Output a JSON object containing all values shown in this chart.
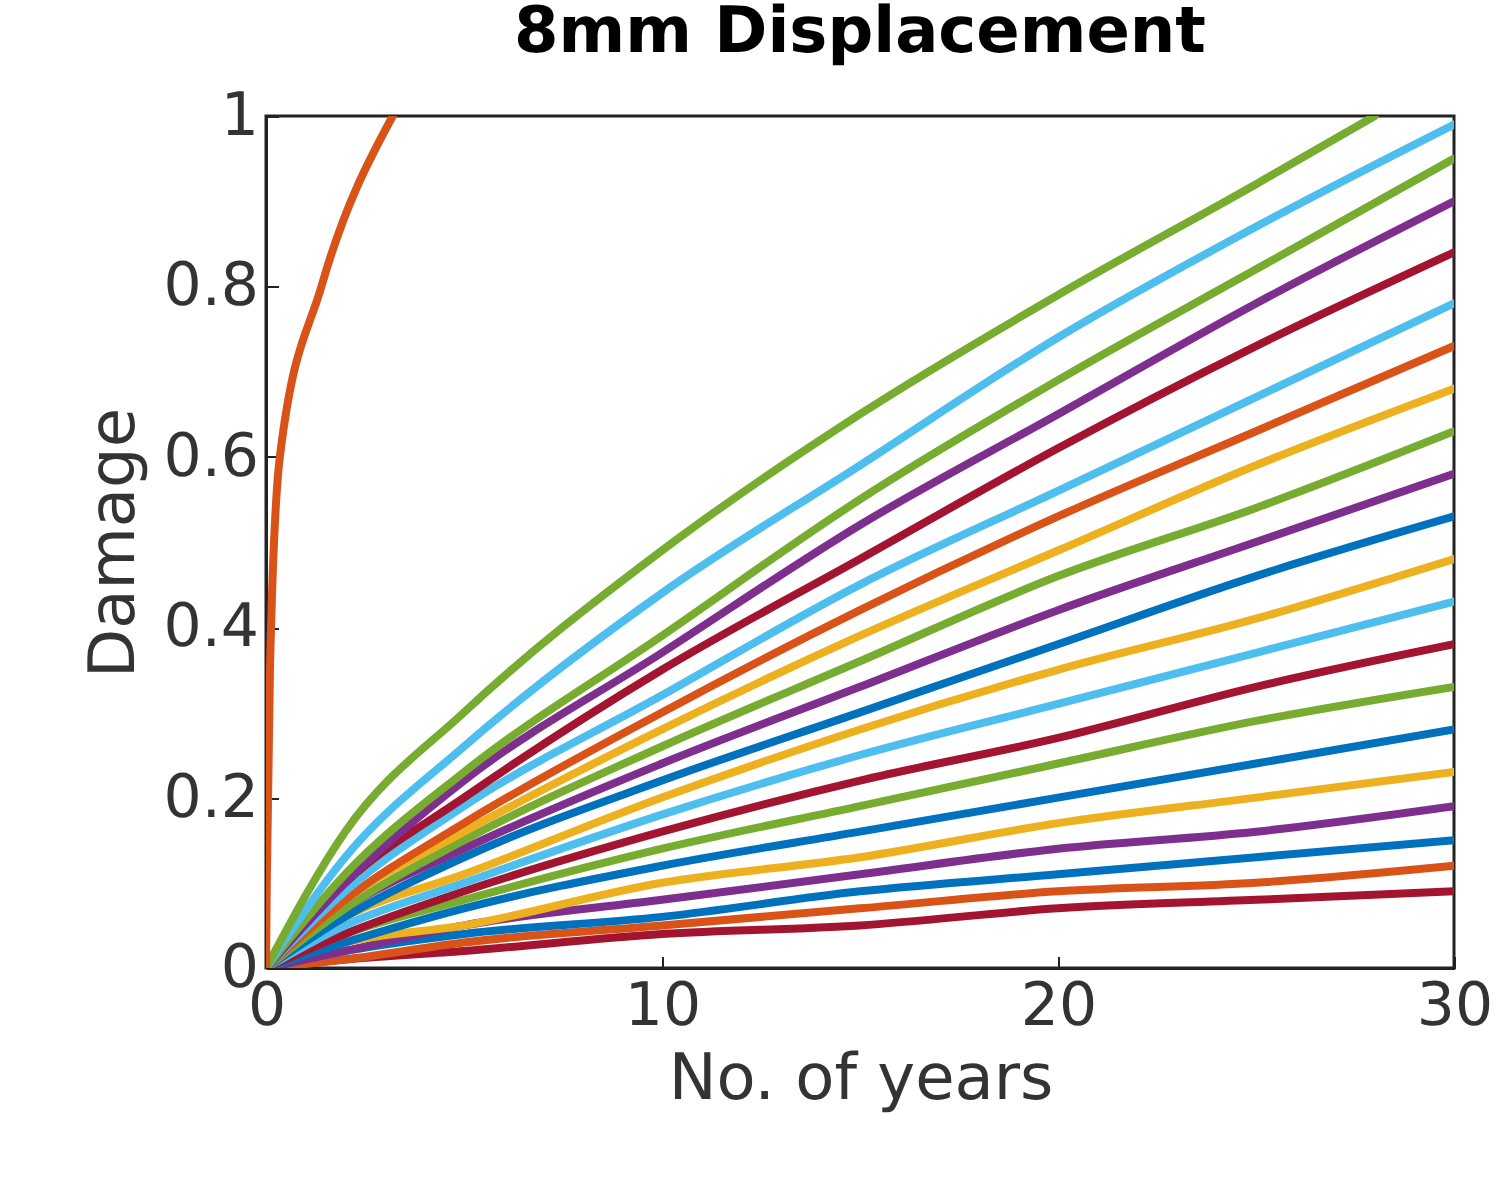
{
  "chart_data": {
    "type": "line",
    "title": "8mm Displacement",
    "xlabel": "No. of years",
    "ylabel": "Damage",
    "x": [
      0,
      2,
      5,
      10,
      15,
      20,
      25,
      30
    ],
    "xlim": [
      0,
      30
    ],
    "xticks": [
      0,
      10,
      20,
      30
    ],
    "ylim": [
      0,
      1
    ],
    "yticks": [
      0,
      0.2,
      0.4,
      0.6,
      0.8,
      1
    ],
    "grid": false,
    "line_style": "solid",
    "series": [
      {
        "color": "#a2142f",
        "values": [
          0,
          0.01,
          0.02,
          0.04,
          0.05,
          0.07,
          0.08,
          0.09
        ]
      },
      {
        "color": "#d95319",
        "values": [
          0,
          0.01,
          0.03,
          0.05,
          0.07,
          0.09,
          0.1,
          0.12
        ]
      },
      {
        "color": "#0072bd",
        "values": [
          0,
          0.02,
          0.04,
          0.06,
          0.09,
          0.11,
          0.13,
          0.15
        ]
      },
      {
        "color": "#7e2f8e",
        "values": [
          0,
          0.02,
          0.05,
          0.08,
          0.11,
          0.14,
          0.16,
          0.19
        ]
      },
      {
        "color": "#edb120",
        "values": [
          0,
          0.03,
          0.05,
          0.1,
          0.13,
          0.17,
          0.2,
          0.23
        ]
      },
      {
        "color": "#0072bd",
        "values": [
          0,
          0.03,
          0.07,
          0.12,
          0.16,
          0.2,
          0.24,
          0.28
        ]
      },
      {
        "color": "#77ac30",
        "values": [
          0,
          0.04,
          0.08,
          0.14,
          0.19,
          0.24,
          0.29,
          0.33
        ]
      },
      {
        "color": "#a2142f",
        "values": [
          0,
          0.04,
          0.09,
          0.16,
          0.22,
          0.27,
          0.33,
          0.38
        ]
      },
      {
        "color": "#4dbeee",
        "values": [
          0,
          0.05,
          0.1,
          0.18,
          0.25,
          0.31,
          0.37,
          0.43
        ]
      },
      {
        "color": "#edb120",
        "values": [
          0,
          0.06,
          0.11,
          0.2,
          0.28,
          0.35,
          0.41,
          0.48
        ]
      },
      {
        "color": "#0072bd",
        "values": [
          0,
          0.06,
          0.13,
          0.22,
          0.3,
          0.38,
          0.46,
          0.53
        ]
      },
      {
        "color": "#7e2f8e",
        "values": [
          0,
          0.07,
          0.14,
          0.24,
          0.33,
          0.42,
          0.5,
          0.58
        ]
      },
      {
        "color": "#77ac30",
        "values": [
          0,
          0.07,
          0.15,
          0.26,
          0.36,
          0.46,
          0.54,
          0.63
        ]
      },
      {
        "color": "#edb120",
        "values": [
          0,
          0.08,
          0.16,
          0.28,
          0.39,
          0.49,
          0.59,
          0.68
        ]
      },
      {
        "color": "#d95319",
        "values": [
          0,
          0.08,
          0.17,
          0.3,
          0.42,
          0.53,
          0.63,
          0.73
        ]
      },
      {
        "color": "#4dbeee",
        "values": [
          0,
          0.09,
          0.19,
          0.32,
          0.45,
          0.56,
          0.67,
          0.78
        ]
      },
      {
        "color": "#a2142f",
        "values": [
          0,
          0.1,
          0.2,
          0.35,
          0.48,
          0.61,
          0.73,
          0.84
        ]
      },
      {
        "color": "#7e2f8e",
        "values": [
          0,
          0.1,
          0.22,
          0.37,
          0.52,
          0.65,
          0.78,
          0.9
        ]
      },
      {
        "color": "#77ac30",
        "values": [
          0,
          0.11,
          0.23,
          0.39,
          0.55,
          0.69,
          0.82,
          0.95
        ]
      },
      {
        "color": "#4dbeee",
        "values": [
          0,
          0.13,
          0.26,
          0.44,
          0.59,
          0.74,
          0.87,
          0.99
        ]
      },
      {
        "color": "#77ac30",
        "x": [
          0,
          2,
          5,
          10,
          15,
          20,
          25,
          28
        ],
        "values": [
          0,
          0.16,
          0.3,
          0.49,
          0.65,
          0.79,
          0.92,
          1
        ]
      },
      {
        "color": "#d95319",
        "x": [
          0,
          0.02,
          0.1,
          0.35,
          1.4,
          3.2
        ],
        "values": [
          0,
          0.1,
          0.35,
          0.6,
          0.8,
          1
        ]
      }
    ]
  }
}
